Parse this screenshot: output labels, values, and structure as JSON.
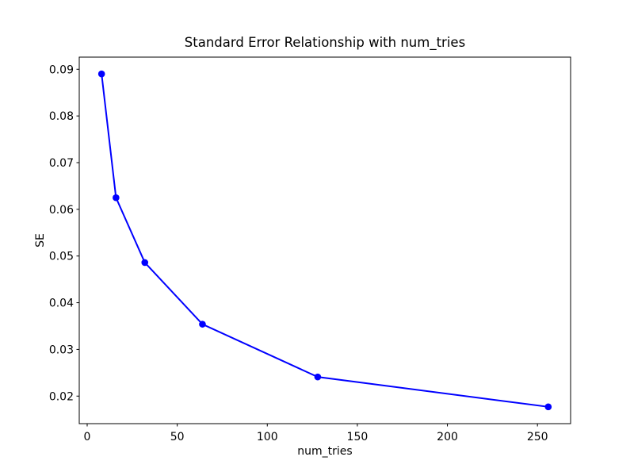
{
  "figure": {
    "background": "#ffffff"
  },
  "chart_data": {
    "type": "line",
    "title": "Standard Error Relationship with num_tries",
    "xlabel": "num_tries",
    "ylabel": "SE",
    "series": [
      {
        "name": "SE",
        "x": [
          8,
          16,
          32,
          64,
          128,
          256
        ],
        "y": [
          0.089,
          0.0625,
          0.0486,
          0.0354,
          0.0241,
          0.0177
        ]
      }
    ],
    "xticks": [
      0,
      50,
      100,
      150,
      200,
      250
    ],
    "yticks": [
      0.02,
      0.03,
      0.04,
      0.05,
      0.06,
      0.07,
      0.08,
      0.09
    ],
    "xlim": [
      -4.4,
      268.4
    ],
    "ylim": [
      0.0141,
      0.0926
    ],
    "line_color": "#0000ff",
    "marker": "circle",
    "grid": false,
    "legend_position": "none"
  }
}
